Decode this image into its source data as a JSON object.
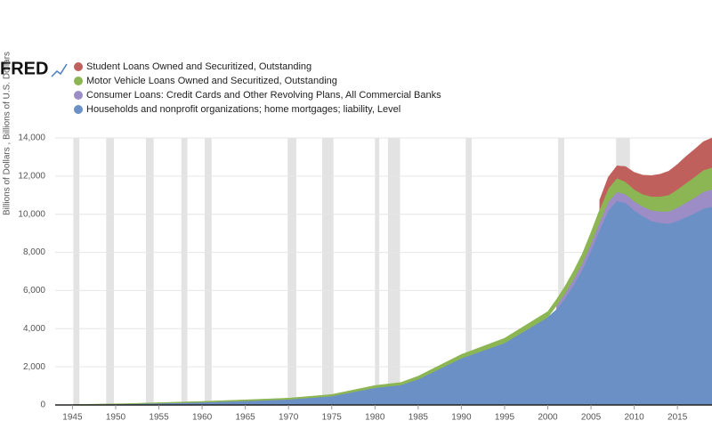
{
  "logo": "FRED",
  "chart_data": {
    "type": "stacked-area",
    "ylabel": "Billions of Dollars , Billions of U.S. Dollars",
    "x": [
      1945,
      1950,
      1952,
      1955,
      1960,
      1965,
      1970,
      1975,
      1980,
      1983,
      1985,
      1990,
      1995,
      2000,
      2001,
      2002,
      2003,
      2004,
      2005,
      2006,
      2007,
      2008,
      2009,
      2010,
      2011,
      2012,
      2013,
      2014,
      2015,
      2016,
      2017,
      2018,
      2019
    ],
    "series": [
      {
        "name": "Student Loans Owned and Securitized, Outstanding",
        "color": "#c0605c",
        "values": [
          null,
          null,
          null,
          null,
          null,
          null,
          null,
          null,
          null,
          null,
          null,
          null,
          null,
          null,
          null,
          null,
          null,
          null,
          null,
          500,
          600,
          650,
          800,
          900,
          1000,
          1100,
          1170,
          1250,
          1320,
          1400,
          1450,
          1500,
          1550
        ]
      },
      {
        "name": "Motor Vehicle Loans Owned and Securitized, Outstanding",
        "color": "#8cb553",
        "values": [
          5,
          15,
          20,
          30,
          45,
          60,
          70,
          90,
          120,
          130,
          160,
          200,
          250,
          300,
          330,
          380,
          430,
          500,
          600,
          650,
          700,
          720,
          650,
          620,
          650,
          720,
          780,
          860,
          950,
          1030,
          1090,
          1130,
          1150
        ]
      },
      {
        "name": "Consumer Loans: Credit Cards and Other Revolving Plans, All Commercial Banks",
        "color": "#9c8dc6",
        "values": [
          null,
          null,
          null,
          null,
          null,
          null,
          null,
          null,
          null,
          null,
          null,
          null,
          null,
          null,
          200,
          250,
          300,
          330,
          360,
          400,
          450,
          470,
          450,
          480,
          500,
          560,
          600,
          650,
          700,
          760,
          820,
          880,
          900
        ]
      },
      {
        "name": "Households and nonprofit organizations; home mortgages; liability, Level",
        "color": "#6a90c6",
        "values": [
          20,
          45,
          60,
          90,
          140,
          210,
          290,
          460,
          900,
          1050,
          1350,
          2450,
          3250,
          4600,
          5000,
          5600,
          6300,
          7100,
          8100,
          9200,
          10200,
          10700,
          10600,
          10200,
          9900,
          9650,
          9550,
          9500,
          9650,
          9850,
          10050,
          10300,
          10400
        ]
      }
    ],
    "recessions": [
      [
        1945.1,
        1945.8
      ],
      [
        1948.9,
        1949.8
      ],
      [
        1953.5,
        1954.4
      ],
      [
        1957.6,
        1958.3
      ],
      [
        1960.3,
        1961.1
      ],
      [
        1969.9,
        1970.9
      ],
      [
        1973.9,
        1975.2
      ],
      [
        1980.0,
        1980.5
      ],
      [
        1981.5,
        1982.9
      ],
      [
        1990.5,
        1991.2
      ],
      [
        2001.2,
        2001.9
      ],
      [
        2007.9,
        2009.5
      ]
    ],
    "xlim": [
      1943,
      2019
    ],
    "ylim": [
      0,
      14000
    ],
    "xticks": [
      1945,
      1950,
      1955,
      1960,
      1965,
      1970,
      1975,
      1980,
      1985,
      1990,
      1995,
      2000,
      2005,
      2010,
      2015
    ],
    "yticks": [
      0,
      {
        "value": 2000,
        "label": "2,000"
      },
      {
        "value": 4000,
        "label": "4,000"
      },
      {
        "value": 6000,
        "label": "6,000"
      },
      {
        "value": 8000,
        "label": "8,000"
      },
      {
        "value": 10000,
        "label": "10,000"
      },
      {
        "value": 12000,
        "label": "12,000"
      },
      {
        "value": 14000,
        "label": "14,000"
      }
    ],
    "grid": true
  }
}
